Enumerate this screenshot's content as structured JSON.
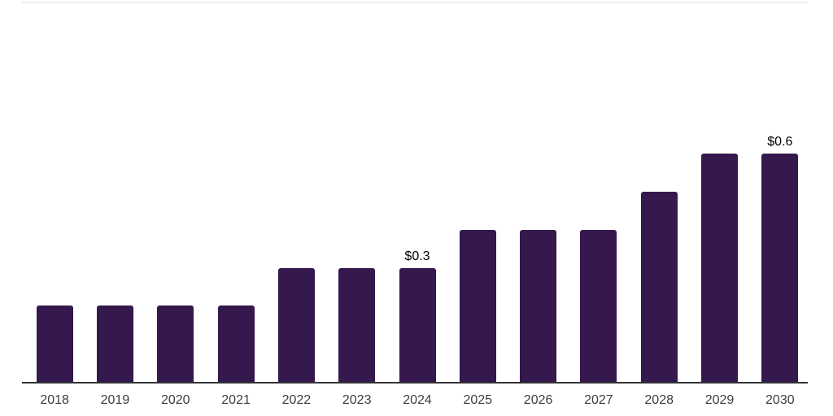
{
  "chart_data": {
    "type": "bar",
    "title": "",
    "xlabel": "",
    "ylabel": "",
    "categories": [
      "2018",
      "2019",
      "2020",
      "2021",
      "2022",
      "2023",
      "2024",
      "2025",
      "2026",
      "2027",
      "2028",
      "2029",
      "2030"
    ],
    "values": [
      0.2,
      0.2,
      0.2,
      0.2,
      0.3,
      0.3,
      0.3,
      0.4,
      0.4,
      0.4,
      0.5,
      0.6,
      0.6
    ],
    "data_labels": [
      "",
      "",
      "",
      "",
      "",
      "",
      "$0.3",
      "",
      "",
      "",
      "",
      "",
      "$0.6"
    ],
    "ylim": [
      0,
      1.0
    ],
    "grid": "top boundary line only, no y-axis tick labels",
    "legend": "none",
    "colors": {
      "bar": "#35184e",
      "axis_line": "#333333",
      "top_gridline": "#ececec",
      "tick_label": "#3d3d3d",
      "data_label": "#000000",
      "background": "#ffffff"
    }
  }
}
